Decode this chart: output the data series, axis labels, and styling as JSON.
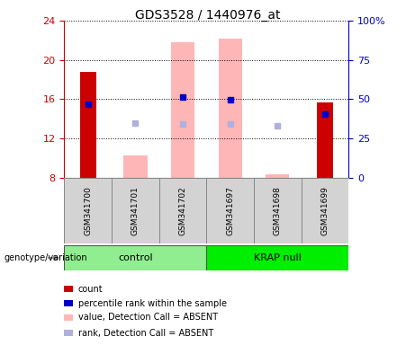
{
  "title": "GDS3528 / 1440976_at",
  "samples": [
    "GSM341700",
    "GSM341701",
    "GSM341702",
    "GSM341697",
    "GSM341698",
    "GSM341699"
  ],
  "group_names": [
    "control",
    "KRAP null"
  ],
  "group_ranges": [
    [
      0,
      3
    ],
    [
      3,
      6
    ]
  ],
  "group_colors": [
    "#90ee90",
    "#00ee00"
  ],
  "ylim_left": [
    8,
    24
  ],
  "ylim_right": [
    0,
    100
  ],
  "yticks_left": [
    8,
    12,
    16,
    20,
    24
  ],
  "yticks_right": [
    0,
    25,
    50,
    75,
    100
  ],
  "ytick_labels_right": [
    "0",
    "25",
    "50",
    "75",
    "100%"
  ],
  "red_bars": {
    "GSM341700": [
      8,
      18.8
    ],
    "GSM341699": [
      8,
      15.7
    ]
  },
  "blue_squares": {
    "GSM341700": 15.5,
    "GSM341702": 16.2,
    "GSM341697": 15.9,
    "GSM341699": 14.5
  },
  "pink_bars": {
    "GSM341701": [
      8,
      10.3
    ],
    "GSM341702": [
      8,
      21.8
    ],
    "GSM341697": [
      8,
      22.2
    ],
    "GSM341698": [
      8,
      8.3
    ]
  },
  "light_blue_squares": {
    "GSM341701": 13.6,
    "GSM341702": 13.5,
    "GSM341697": 13.5,
    "GSM341698": 13.3
  },
  "red_bar_width": 0.35,
  "pink_bar_width": 0.5,
  "left_axis_color": "#cc0000",
  "right_axis_color": "#0000cc",
  "red_bar_color": "#cc0000",
  "blue_square_color": "#0000cc",
  "pink_bar_color": "#ffb6b6",
  "light_blue_square_color": "#b0b0dd",
  "sample_box_color": "#d3d3d3",
  "sample_box_edge": "#888888",
  "legend_items": [
    {
      "label": "count",
      "color": "#cc0000"
    },
    {
      "label": "percentile rank within the sample",
      "color": "#0000cc"
    },
    {
      "label": "value, Detection Call = ABSENT",
      "color": "#ffb6b6"
    },
    {
      "label": "rank, Detection Call = ABSENT",
      "color": "#b0b0dd"
    }
  ]
}
